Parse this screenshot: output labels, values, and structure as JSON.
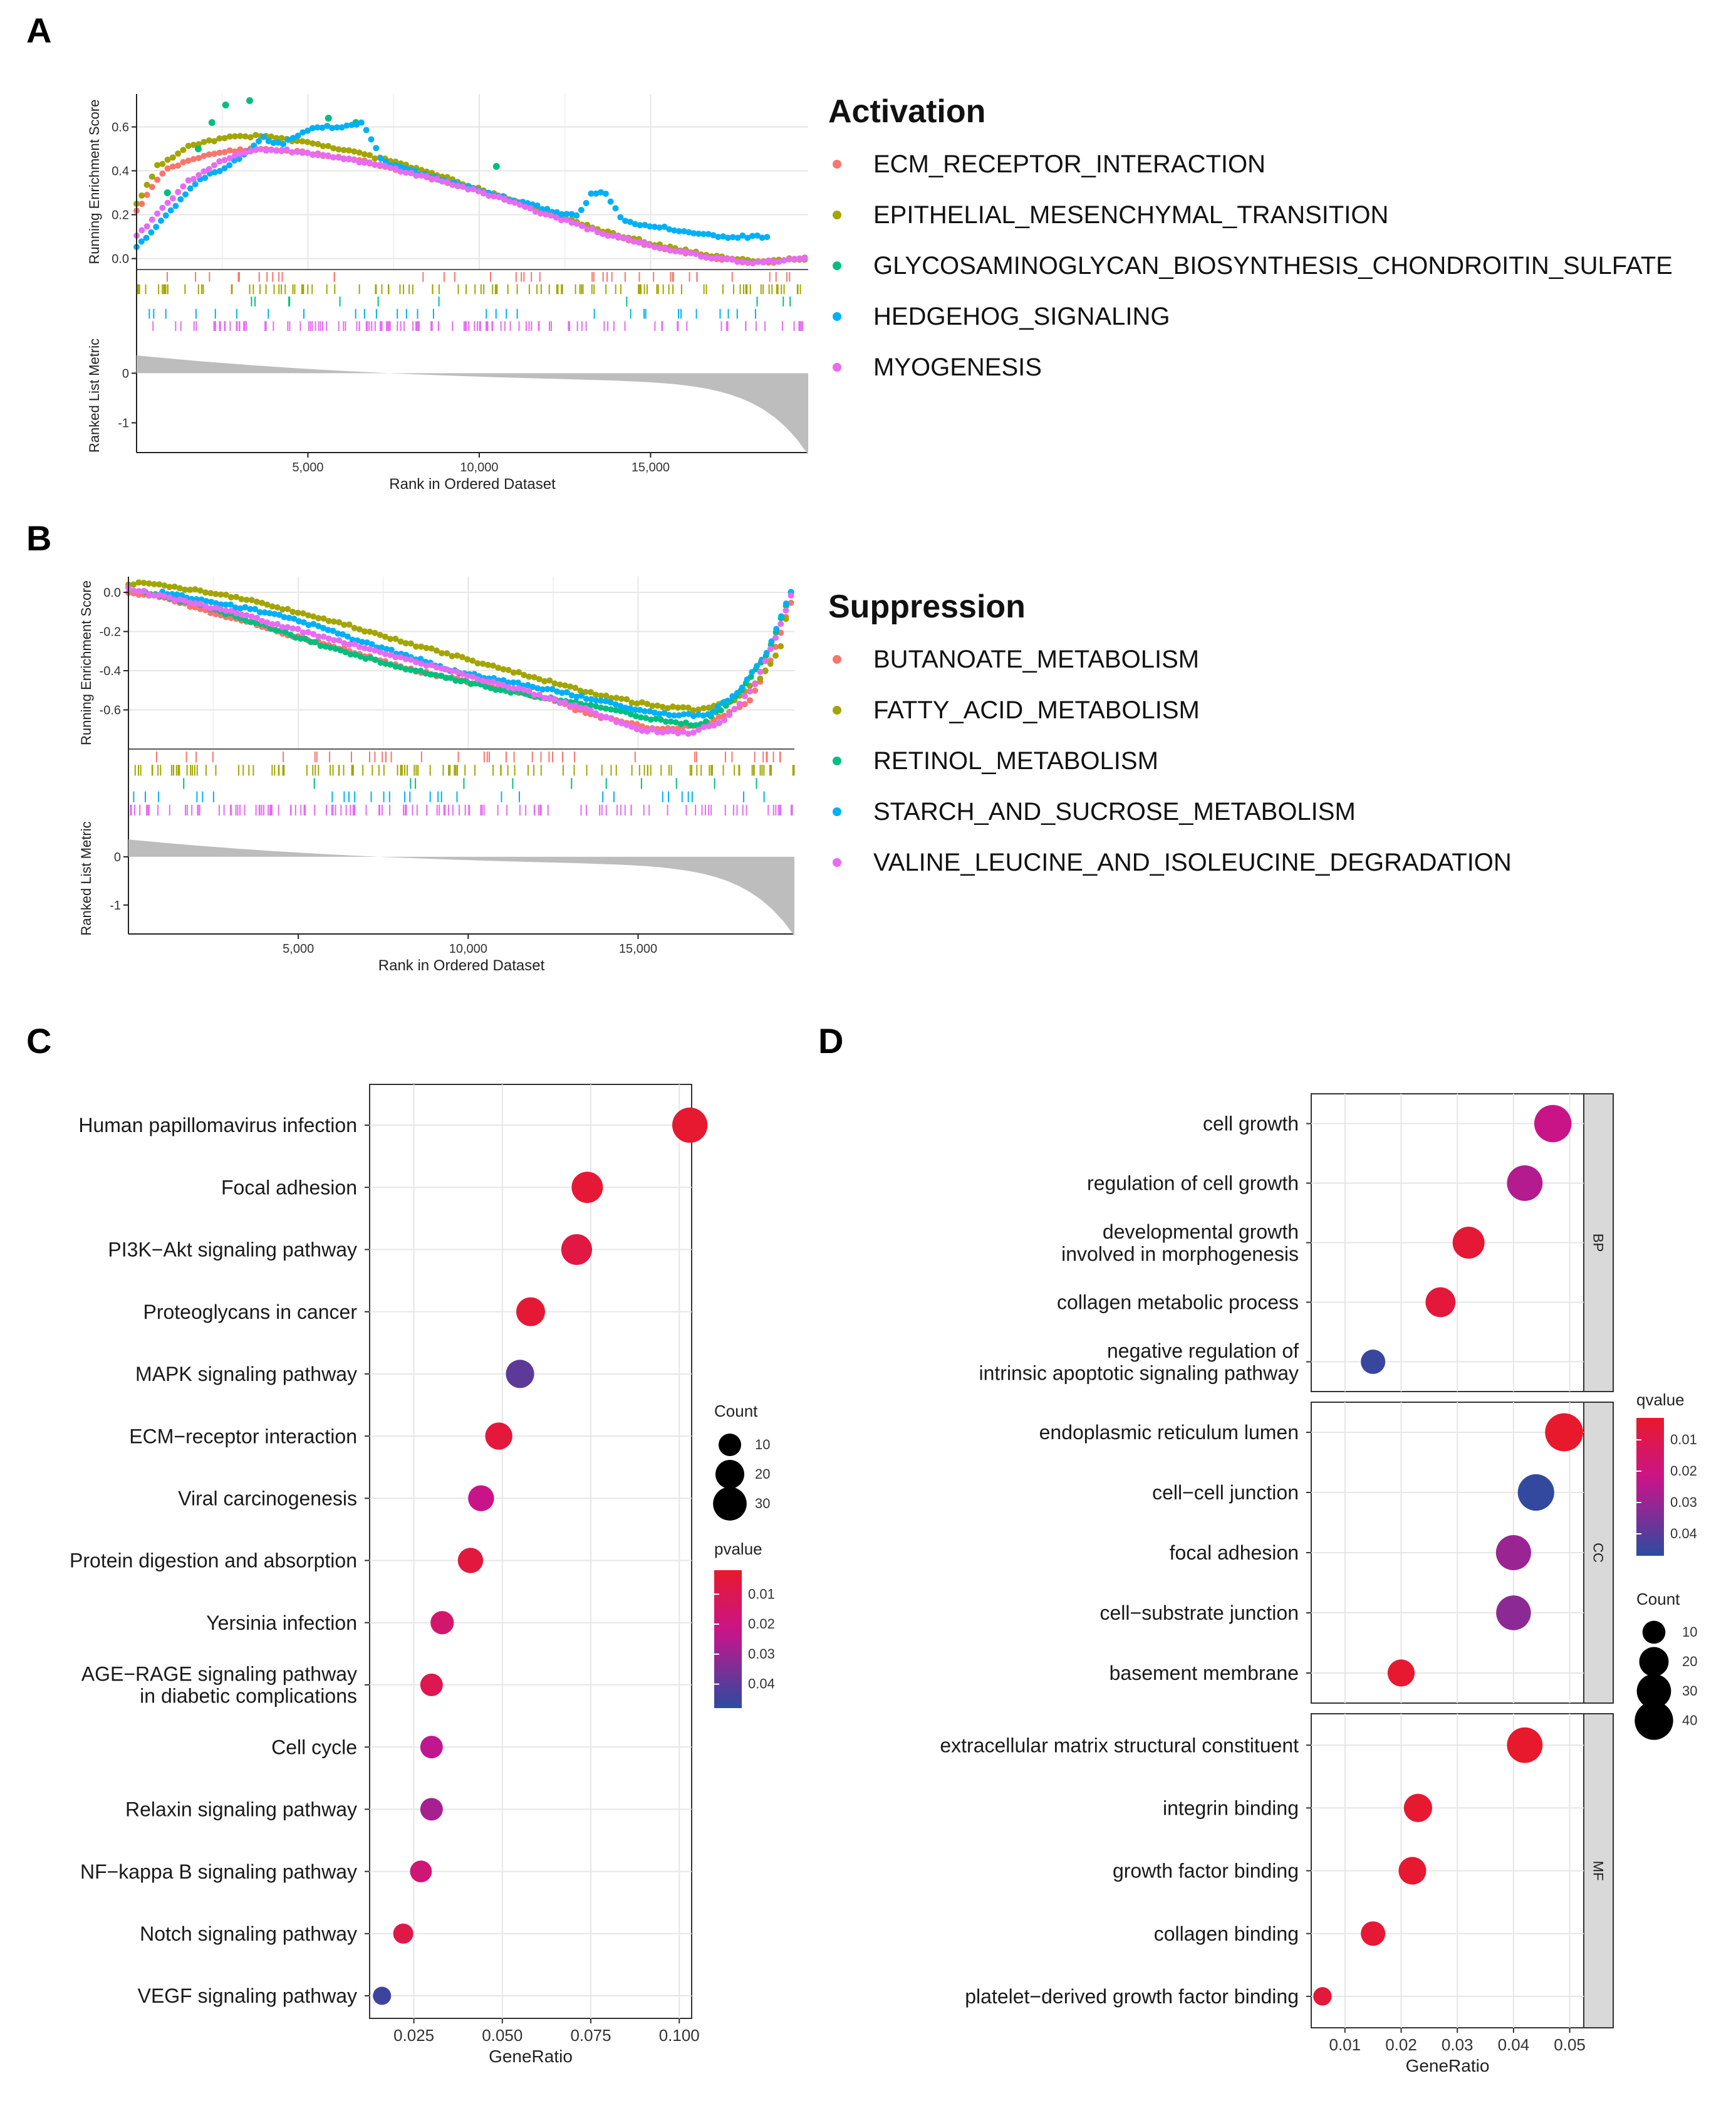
{
  "figure": {
    "background": "#ffffff",
    "grid_color": "#e6e6e6",
    "panel_border": "#333333",
    "strip_fill": "#d9d9d9"
  },
  "chart_data": [
    {
      "panel": "A",
      "type": "line",
      "subtype": "gsea-running-enrichment",
      "legend_title": "Activation",
      "legend_position": "right",
      "xlabel": "Rank in Ordered Dataset",
      "ylabel_top": "Running Enrichment Score",
      "ylabel_bottom": "Ranked List Metric",
      "xlim": [
        0,
        19600
      ],
      "x_ticks": [
        5000,
        10000,
        15000
      ],
      "x_tick_labels": [
        "5,000",
        "10,000",
        "15,000"
      ],
      "ylim_top": [
        -0.05,
        0.75
      ],
      "y_ticks_top": [
        0.0,
        0.2,
        0.4,
        0.6
      ],
      "y_tick_labels_top": [
        "0.0",
        "0.2",
        "0.4",
        "0.6"
      ],
      "ylim_bottom": [
        -1.6,
        0.7
      ],
      "y_ticks_bottom": [
        0,
        -1
      ],
      "y_tick_labels_bottom": [
        "0",
        "-1"
      ],
      "series": [
        {
          "name": "ECM_RECEPTOR_INTERACTION",
          "color": "#F8766D",
          "x": [
            0,
            800,
            1700,
            2700,
            3800,
            5000,
            6500,
            8000,
            9500,
            11000,
            12500,
            14000,
            15500,
            17000,
            18200,
            19500
          ],
          "y": [
            0.22,
            0.4,
            0.46,
            0.49,
            0.5,
            0.48,
            0.45,
            0.39,
            0.33,
            0.26,
            0.18,
            0.1,
            0.04,
            0.0,
            -0.02,
            0.0
          ]
        },
        {
          "name": "EPITHELIAL_MESENCHYMAL_TRANSITION",
          "color": "#A3A500",
          "x": [
            0,
            600,
            1500,
            2500,
            3500,
            4500,
            6000,
            7500,
            9000,
            10500,
            12000,
            13500,
            15000,
            16500,
            18000,
            19500
          ],
          "y": [
            0.25,
            0.42,
            0.51,
            0.55,
            0.56,
            0.54,
            0.5,
            0.44,
            0.37,
            0.29,
            0.21,
            0.13,
            0.07,
            0.02,
            -0.01,
            0.0
          ]
        },
        {
          "name": "GLYCOSAMINOGLYCAN_BIOSYNTHESIS_CHONDROITIN_SULFATE",
          "color": "#00BF7D",
          "x": [
            900,
            1800,
            2200,
            2600,
            3300,
            5600,
            6400,
            10500
          ],
          "y": [
            0.3,
            0.5,
            0.62,
            0.7,
            0.72,
            0.64,
            0.62,
            0.42
          ]
        },
        {
          "name": "HEDGEHOG_SIGNALING",
          "color": "#00B0F6",
          "x": [
            0,
            600,
            1200,
            1800,
            2400,
            3000,
            3700,
            4200,
            5200,
            6000,
            6600,
            7200,
            7800,
            12500,
            12900,
            13300,
            13700,
            14200,
            17000,
            18400
          ],
          "y": [
            0.05,
            0.15,
            0.25,
            0.36,
            0.4,
            0.46,
            0.55,
            0.52,
            0.6,
            0.6,
            0.62,
            0.44,
            0.41,
            0.2,
            0.2,
            0.3,
            0.3,
            0.17,
            0.1,
            0.1
          ]
        },
        {
          "name": "MYOGENESIS",
          "color": "#E76BF3",
          "x": [
            0,
            700,
            1500,
            2500,
            3500,
            4500,
            6000,
            7500,
            9000,
            10500,
            12000,
            13500,
            15000,
            16500,
            18000,
            19500
          ],
          "y": [
            0.1,
            0.22,
            0.35,
            0.45,
            0.5,
            0.49,
            0.46,
            0.41,
            0.35,
            0.28,
            0.2,
            0.12,
            0.06,
            0.01,
            -0.02,
            0.0
          ]
        }
      ]
    },
    {
      "panel": "B",
      "type": "line",
      "subtype": "gsea-running-enrichment",
      "legend_title": "Suppression",
      "legend_position": "right",
      "xlabel": "Rank in Ordered Dataset",
      "ylabel_top": "Running Enrichment Score",
      "ylabel_bottom": "Ranked List Metric",
      "xlim": [
        0,
        19600
      ],
      "x_ticks": [
        5000,
        10000,
        15000
      ],
      "x_tick_labels": [
        "5,000",
        "10,000",
        "15,000"
      ],
      "ylim_top": [
        -0.8,
        0.08
      ],
      "y_ticks_top": [
        0.0,
        -0.2,
        -0.4,
        -0.6
      ],
      "y_tick_labels_top": [
        "0.0",
        "-0.2",
        "-0.4",
        "-0.6"
      ],
      "ylim_bottom": [
        -1.6,
        0.7
      ],
      "y_ticks_bottom": [
        0,
        -1
      ],
      "y_tick_labels_bottom": [
        "0",
        "-1"
      ],
      "series": [
        {
          "name": "BUTANOATE_METABOLISM",
          "color": "#F8766D",
          "x": [
            0,
            1000,
            2000,
            3500,
            5000,
            6500,
            8000,
            9500,
            11000,
            12500,
            13500,
            15500,
            17000,
            18300,
            18900,
            19500
          ],
          "y": [
            0.0,
            -0.02,
            -0.08,
            -0.15,
            -0.23,
            -0.3,
            -0.38,
            -0.44,
            -0.49,
            -0.55,
            -0.62,
            -0.7,
            -0.68,
            -0.55,
            -0.35,
            -0.05
          ]
        },
        {
          "name": "FATTY_ACID_METABOLISM",
          "color": "#A3A500",
          "x": [
            0,
            500,
            1500,
            2500,
            3500,
            5000,
            6500,
            8000,
            9500,
            11000,
            12500,
            14000,
            15500,
            16800,
            17800,
            18600,
            19200,
            19500
          ],
          "y": [
            0.04,
            0.05,
            0.02,
            0.0,
            -0.04,
            -0.1,
            -0.17,
            -0.25,
            -0.32,
            -0.39,
            -0.46,
            -0.53,
            -0.58,
            -0.6,
            -0.55,
            -0.44,
            -0.28,
            0.0
          ]
        },
        {
          "name": "RETINOL_METABOLISM",
          "color": "#00BF7D",
          "x": [
            500,
            2000,
            3500,
            5500,
            7500,
            9500,
            11000,
            12800,
            14200,
            15500,
            16800,
            17800,
            18800,
            19500
          ],
          "y": [
            0.0,
            -0.06,
            -0.14,
            -0.26,
            -0.36,
            -0.44,
            -0.5,
            -0.55,
            -0.6,
            -0.65,
            -0.68,
            -0.55,
            -0.32,
            0.0
          ]
        },
        {
          "name": "STARCH_AND_SUCROSE_METABOLISM",
          "color": "#00B0F6",
          "x": [
            1000,
            2500,
            4000,
            5500,
            7000,
            8500,
            9500,
            11000,
            12500,
            14000,
            15600,
            17000,
            18000,
            18800,
            19500
          ],
          "y": [
            0.0,
            -0.05,
            -0.1,
            -0.17,
            -0.26,
            -0.34,
            -0.4,
            -0.45,
            -0.5,
            -0.56,
            -0.62,
            -0.63,
            -0.5,
            -0.3,
            0.0
          ]
        },
        {
          "name": "VALINE_LEUCINE_AND_ISOLEUCINE_DEGRADATION",
          "color": "#E76BF3",
          "x": [
            0,
            1500,
            3000,
            4500,
            6000,
            7500,
            9000,
            10500,
            12000,
            13500,
            15000,
            16500,
            17600,
            18400,
            19000,
            19500
          ],
          "y": [
            0.02,
            -0.04,
            -0.1,
            -0.17,
            -0.24,
            -0.31,
            -0.38,
            -0.45,
            -0.52,
            -0.6,
            -0.7,
            -0.72,
            -0.65,
            -0.48,
            -0.25,
            -0.02
          ]
        }
      ]
    },
    {
      "panel": "C",
      "type": "scatter",
      "subtype": "dotplot",
      "xlabel": "GeneRatio",
      "xlim": [
        0.0125,
        0.1035
      ],
      "x_ticks": [
        0.025,
        0.05,
        0.075,
        0.1
      ],
      "x_tick_labels": [
        "0.025",
        "0.050",
        "0.075",
        "0.100"
      ],
      "legend_position": "right",
      "size_legend": {
        "title": "Count",
        "values": [
          10,
          20,
          30
        ],
        "labels": [
          "10",
          "20",
          "30"
        ]
      },
      "color_legend": {
        "title": "pvalue",
        "ticks": [
          0.01,
          0.02,
          0.03,
          0.04
        ],
        "labels": [
          "0.01",
          "0.02",
          "0.03",
          "0.04"
        ],
        "range": [
          0.002,
          0.048
        ],
        "low_color": "#E8192C",
        "high_color": "#2C4BA0"
      },
      "categories": [
        "Human papillomavirus infection",
        "Focal adhesion",
        "PI3K−Akt signaling pathway",
        "Proteoglycans in cancer",
        "MAPK signaling pathway",
        "ECM−receptor interaction",
        "Viral carcinogenesis",
        "Protein digestion and absorption",
        "Yersinia infection",
        "AGE−RAGE signaling pathway\nin diabetic complications",
        "Cell cycle",
        "Relaxin signaling pathway",
        "NF−kappa B signaling pathway",
        "Notch signaling pathway",
        "VEGF signaling pathway"
      ],
      "gene_ratio": [
        0.103,
        0.074,
        0.071,
        0.058,
        0.055,
        0.049,
        0.044,
        0.041,
        0.033,
        0.03,
        0.03,
        0.03,
        0.027,
        0.022,
        0.016
      ],
      "count": [
        34,
        25,
        24,
        20,
        19,
        17,
        15,
        14,
        11,
        10,
        10,
        10,
        9,
        7,
        5
      ],
      "pvalue": [
        0.003,
        0.004,
        0.007,
        0.004,
        0.04,
        0.005,
        0.022,
        0.006,
        0.016,
        0.01,
        0.024,
        0.028,
        0.018,
        0.008,
        0.045
      ]
    },
    {
      "panel": "D",
      "type": "scatter",
      "subtype": "dotplot-faceted",
      "xlabel": "GeneRatio",
      "xlim": [
        0.004,
        0.0525
      ],
      "x_ticks": [
        0.01,
        0.02,
        0.03,
        0.04,
        0.05
      ],
      "x_tick_labels": [
        "0.01",
        "0.02",
        "0.03",
        "0.04",
        "0.05"
      ],
      "legend_position": "right",
      "color_legend": {
        "title": "qvalue",
        "ticks": [
          0.01,
          0.02,
          0.03,
          0.04
        ],
        "labels": [
          "0.01",
          "0.02",
          "0.03",
          "0.04"
        ],
        "range": [
          0.003,
          0.047
        ],
        "low_color": "#E8192C",
        "high_color": "#2C4BA0"
      },
      "size_legend": {
        "title": "Count",
        "values": [
          10,
          20,
          30,
          40
        ],
        "labels": [
          "10",
          "20",
          "30",
          "40"
        ]
      },
      "facets": [
        {
          "label": "BP",
          "categories": [
            "cell growth",
            "regulation of cell growth",
            "developmental growth\ninvolved in morphogenesis",
            "collagen metabolic process",
            "negative regulation of\nintrinsic apoptotic signaling pathway"
          ],
          "gene_ratio": [
            0.047,
            0.042,
            0.032,
            0.027,
            0.015
          ],
          "count": [
            37,
            33,
            25,
            21,
            12
          ],
          "qvalue": [
            0.022,
            0.026,
            0.005,
            0.006,
            0.045
          ]
        },
        {
          "label": "CC",
          "categories": [
            "endoplasmic reticulum lumen",
            "cell−cell junction",
            "focal adhesion",
            "cell−substrate junction",
            "basement membrane"
          ],
          "gene_ratio": [
            0.049,
            0.044,
            0.04,
            0.04,
            0.02
          ],
          "count": [
            39,
            35,
            32,
            31,
            16
          ],
          "qvalue": [
            0.003,
            0.046,
            0.03,
            0.032,
            0.004
          ]
        },
        {
          "label": "MF",
          "categories": [
            "extracellular matrix structural constituent",
            "integrin binding",
            "growth factor binding",
            "collagen binding",
            "platelet−derived growth factor binding"
          ],
          "gene_ratio": [
            0.042,
            0.023,
            0.022,
            0.015,
            0.006
          ],
          "count": [
            33,
            18,
            17,
            12,
            5
          ],
          "qvalue": [
            0.003,
            0.004,
            0.004,
            0.005,
            0.006
          ]
        }
      ]
    }
  ],
  "labels": {
    "a": "A",
    "b": "B",
    "c": "C",
    "d": "D"
  }
}
